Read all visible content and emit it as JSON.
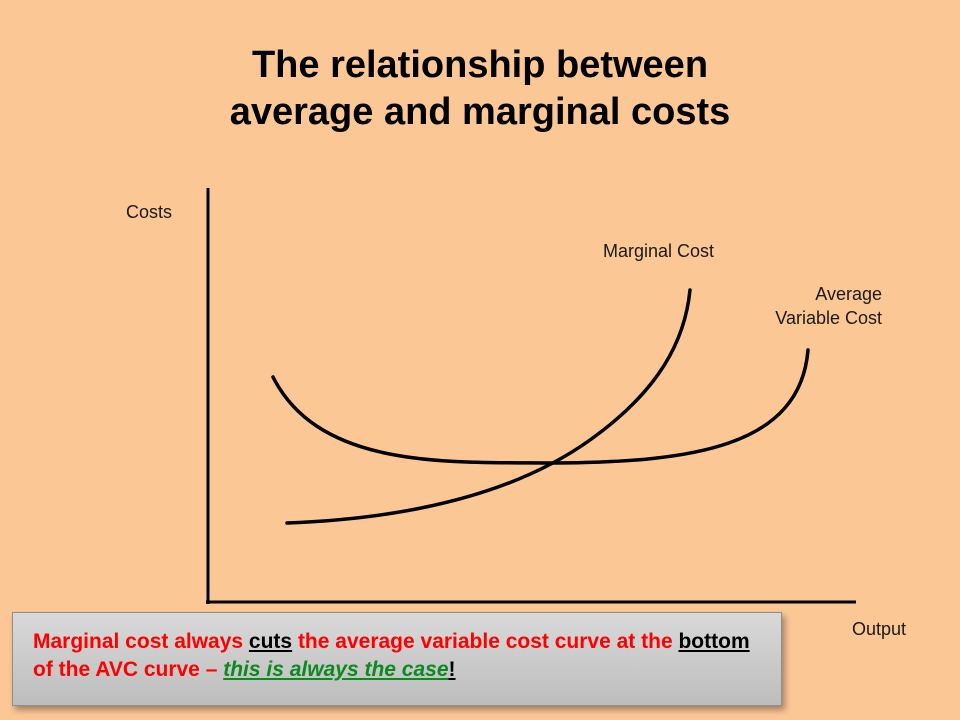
{
  "title": {
    "line1": "The relationship between",
    "line2": "average and marginal costs"
  },
  "axes": {
    "y_label": "Costs",
    "x_label": "Output"
  },
  "curves": {
    "marginal_cost_label": "Marginal Cost",
    "avc_label_line1": "Average",
    "avc_label_line2": "Variable Cost"
  },
  "callout": {
    "part1": "Marginal cost always ",
    "part2": "cuts",
    "part3": " the average variable cost curve at the ",
    "part4": "bottom",
    "part5": " of the AVC curve – ",
    "part6": "this is always the case",
    "part7": "!"
  },
  "colors": {
    "background": "#fbc795",
    "highlight_red": "#ff0000",
    "highlight_green": "#0b8a1f"
  }
}
